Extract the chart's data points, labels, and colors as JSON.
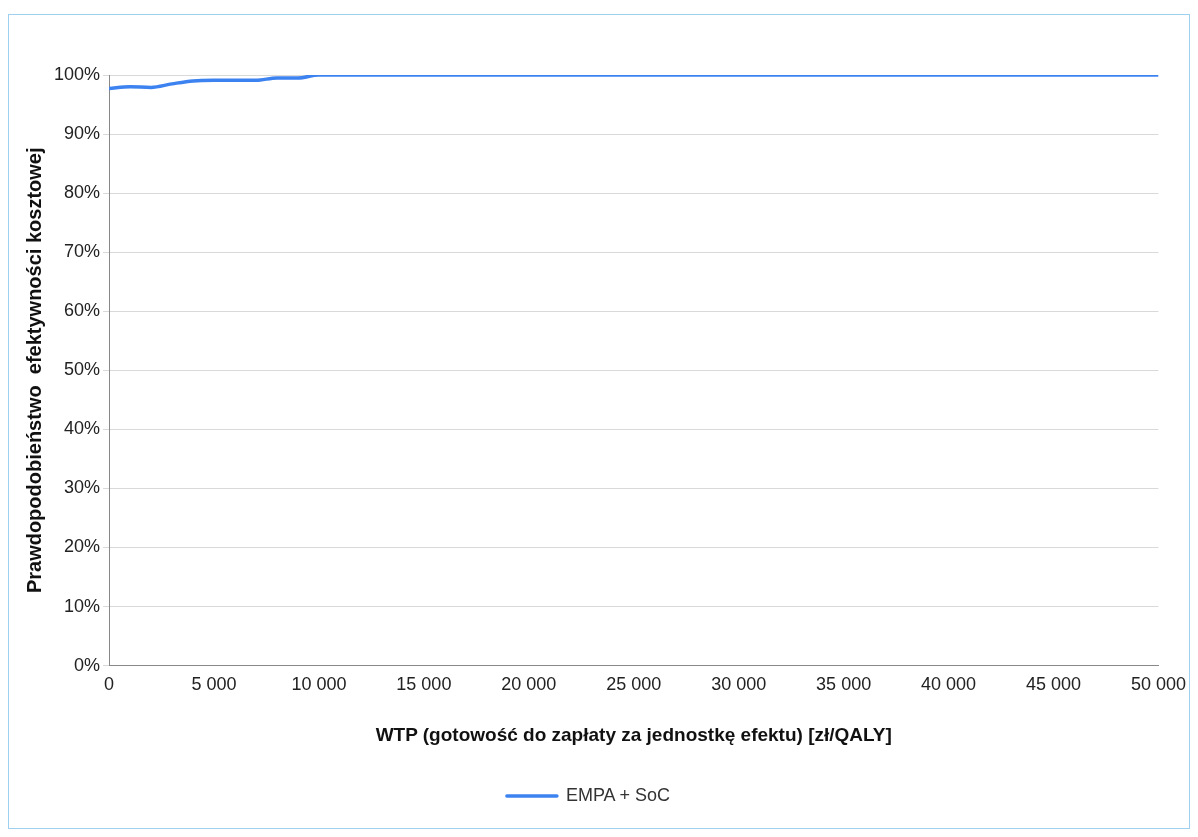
{
  "chart_data": {
    "type": "line",
    "xlabel": "WTP (gotowość do zapłaty za jednostkę efektu) [zł/QALY]",
    "ylabel": "Prawdopodobieństwo  efektywności kosztowej",
    "x": [
      0,
      1000,
      2000,
      3000,
      4000,
      5000,
      6000,
      7000,
      8000,
      9000,
      10000,
      15000,
      20000,
      25000,
      30000,
      35000,
      40000,
      45000,
      50000
    ],
    "series": [
      {
        "name": "EMPA + SoC",
        "color": "#3c82f0",
        "values": [
          97.7,
          98.0,
          97.9,
          98.5,
          99.0,
          99.1,
          99.1,
          99.1,
          99.5,
          99.5,
          100,
          100,
          100,
          100,
          100,
          100,
          100,
          100,
          100
        ]
      }
    ],
    "xlim": [
      0,
      50000
    ],
    "xticks": [
      {
        "value": 0,
        "label": "0"
      },
      {
        "value": 5000,
        "label": "5 000"
      },
      {
        "value": 10000,
        "label": "10 000"
      },
      {
        "value": 15000,
        "label": "15 000"
      },
      {
        "value": 20000,
        "label": "20 000"
      },
      {
        "value": 25000,
        "label": "25 000"
      },
      {
        "value": 30000,
        "label": "30 000"
      },
      {
        "value": 35000,
        "label": "35 000"
      },
      {
        "value": 40000,
        "label": "40 000"
      },
      {
        "value": 45000,
        "label": "45 000"
      },
      {
        "value": 50000,
        "label": "50 000"
      }
    ],
    "ylim": [
      0,
      100
    ],
    "yticks": [
      {
        "value": 0,
        "label": "0%"
      },
      {
        "value": 10,
        "label": "10%"
      },
      {
        "value": 20,
        "label": "20%"
      },
      {
        "value": 30,
        "label": "30%"
      },
      {
        "value": 40,
        "label": "40%"
      },
      {
        "value": 50,
        "label": "50%"
      },
      {
        "value": 60,
        "label": "60%"
      },
      {
        "value": 70,
        "label": "70%"
      },
      {
        "value": 80,
        "label": "80%"
      },
      {
        "value": 90,
        "label": "90%"
      },
      {
        "value": 100,
        "label": "100%"
      }
    ],
    "grid": "y",
    "legend": "bottom",
    "marker": "none",
    "line_style": "solid"
  }
}
